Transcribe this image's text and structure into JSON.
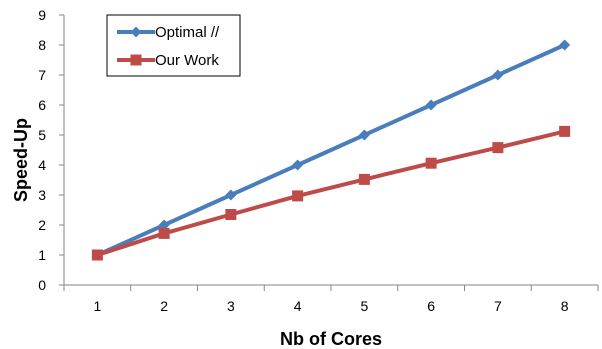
{
  "chart_data": {
    "type": "line",
    "title": "",
    "xlabel": "Nb of Cores",
    "ylabel": "Speed-Up",
    "x": [
      1,
      2,
      3,
      4,
      5,
      6,
      7,
      8
    ],
    "xlim": [
      0.5,
      8.5
    ],
    "ylim": [
      0,
      9
    ],
    "yticks": [
      0,
      1,
      2,
      3,
      4,
      5,
      6,
      7,
      8,
      9
    ],
    "grid": "none",
    "legend_position": "top-left",
    "series": [
      {
        "name": "Optimal //",
        "values": [
          1,
          2,
          3,
          4,
          5,
          6,
          7,
          8
        ],
        "color": "#4A7EBB",
        "marker": "diamond"
      },
      {
        "name": "Our Work",
        "values": [
          1.0,
          1.72,
          2.35,
          2.97,
          3.52,
          4.06,
          4.58,
          5.12
        ],
        "color": "#BE4B48",
        "marker": "square"
      }
    ]
  }
}
